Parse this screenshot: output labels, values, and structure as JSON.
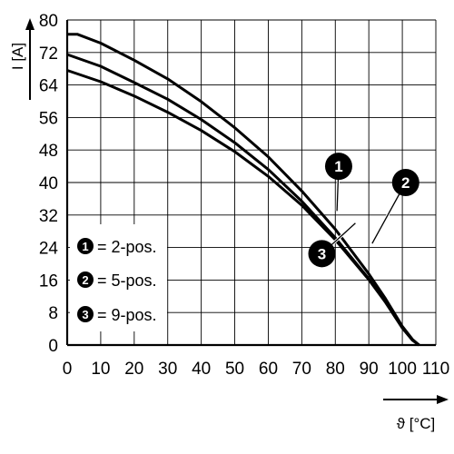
{
  "chart_data": {
    "type": "line",
    "title": "",
    "xlabel": "ϑ [°C]",
    "ylabel": "I [A]",
    "xlim": [
      0,
      110
    ],
    "ylim": [
      0,
      80
    ],
    "x_ticks": [
      0,
      10,
      20,
      30,
      40,
      50,
      60,
      70,
      80,
      90,
      100,
      110
    ],
    "y_ticks": [
      0,
      8,
      16,
      24,
      32,
      40,
      48,
      56,
      64,
      72,
      80
    ],
    "grid": true,
    "legend": {
      "placement": "bottom-left",
      "entries": [
        {
          "marker": "1",
          "label": "= 2-pos."
        },
        {
          "marker": "2",
          "label": "= 5-pos."
        },
        {
          "marker": "3",
          "label": "= 9-pos."
        }
      ]
    },
    "series": [
      {
        "marker": "1",
        "x": [
          0,
          3,
          10,
          20,
          30,
          40,
          50,
          60,
          70,
          80,
          90,
          95,
          100,
          103,
          105
        ],
        "y": [
          76.5,
          76.5,
          74.3,
          70.1,
          65.5,
          59.9,
          53.5,
          46.3,
          37.9,
          28.5,
          17.5,
          11.4,
          4.6,
          1.4,
          0
        ]
      },
      {
        "marker": "2",
        "x": [
          0,
          10,
          20,
          30,
          40,
          50,
          60,
          70,
          80,
          90,
          95,
          100,
          103,
          105
        ],
        "y": [
          71.5,
          68.6,
          64.6,
          60.5,
          55.5,
          49.8,
          43.2,
          35.4,
          26.4,
          16.3,
          10.6,
          4.2,
          1.2,
          0
        ]
      },
      {
        "marker": "3",
        "x": [
          0,
          10,
          20,
          30,
          40,
          50,
          60,
          70,
          80,
          90,
          95,
          100,
          103,
          105
        ],
        "y": [
          67.6,
          64.8,
          61.3,
          57.3,
          52.8,
          47.6,
          41.5,
          34.4,
          25.9,
          16.1,
          10.5,
          4.2,
          1.2,
          0
        ]
      }
    ],
    "callouts": [
      {
        "marker": "1",
        "at": [
          81,
          44
        ],
        "to": [
          80.5,
          33
        ]
      },
      {
        "marker": "2",
        "at": [
          101,
          40
        ],
        "to": [
          91,
          25
        ]
      },
      {
        "marker": "3",
        "at": [
          76,
          22.5
        ],
        "to": [
          86,
          30
        ]
      }
    ]
  }
}
